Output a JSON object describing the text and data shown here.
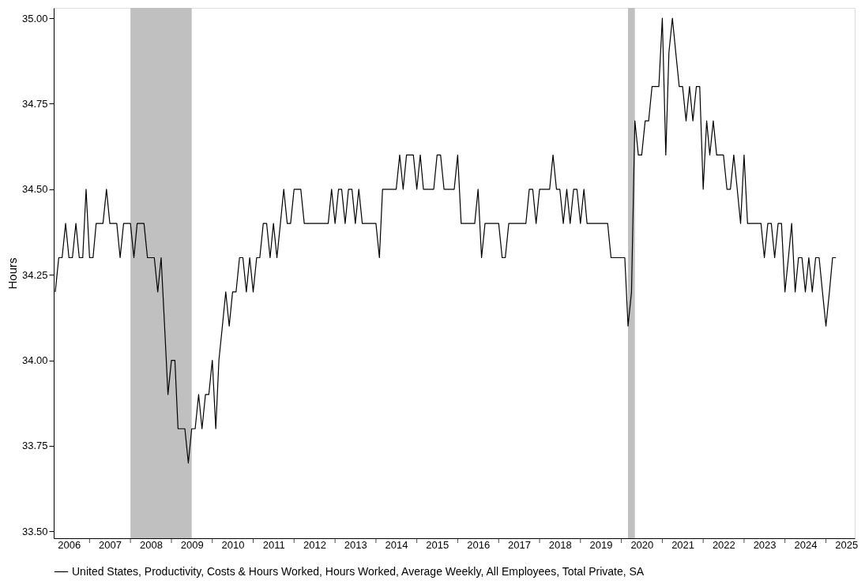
{
  "chart_data": {
    "type": "line",
    "ylabel": "Hours",
    "legend": "bottom",
    "grid": false,
    "line_style": "solid",
    "x": [
      "2006-03",
      "2006-04",
      "2006-05",
      "2006-06",
      "2006-07",
      "2006-08",
      "2006-09",
      "2006-10",
      "2006-11",
      "2006-12",
      "2007-01",
      "2007-02",
      "2007-03",
      "2007-05",
      "2007-06",
      "2007-07",
      "2007-09",
      "2007-10",
      "2007-11",
      "2008-01",
      "2008-02",
      "2008-03",
      "2008-05",
      "2008-06",
      "2008-08",
      "2008-09",
      "2008-10",
      "2008-11",
      "2008-12",
      "2009-01",
      "2009-02",
      "2009-03",
      "2009-05",
      "2009-06",
      "2009-07",
      "2009-08",
      "2009-09",
      "2009-10",
      "2009-11",
      "2009-12",
      "2010-01",
      "2010-02",
      "2010-03",
      "2010-04",
      "2010-05",
      "2010-06",
      "2010-07",
      "2010-08",
      "2010-09",
      "2010-10",
      "2010-11",
      "2010-12",
      "2011-01",
      "2011-02",
      "2011-03",
      "2011-04",
      "2011-05",
      "2011-06",
      "2011-07",
      "2011-08",
      "2011-09",
      "2011-10",
      "2011-11",
      "2011-12",
      "2012-01",
      "2012-03",
      "2012-04",
      "2012-11",
      "2012-12",
      "2013-01",
      "2013-02",
      "2013-03",
      "2013-04",
      "2013-05",
      "2013-06",
      "2013-07",
      "2013-08",
      "2013-09",
      "2014-01",
      "2014-02",
      "2014-03",
      "2014-07",
      "2014-08",
      "2014-09",
      "2014-10",
      "2014-12",
      "2015-01",
      "2015-02",
      "2015-03",
      "2015-06",
      "2015-07",
      "2015-08",
      "2015-09",
      "2015-12",
      "2016-01",
      "2016-02",
      "2016-06",
      "2016-07",
      "2016-08",
      "2016-09",
      "2017-01",
      "2017-02",
      "2017-03",
      "2017-04",
      "2017-09",
      "2017-10",
      "2017-11",
      "2017-12",
      "2018-01",
      "2018-04",
      "2018-05",
      "2018-06",
      "2018-07",
      "2018-08",
      "2018-09",
      "2018-10",
      "2018-11",
      "2018-12",
      "2019-01",
      "2019-02",
      "2019-03",
      "2019-09",
      "2019-10",
      "2020-02",
      "2020-03",
      "2020-04",
      "2020-05",
      "2020-06",
      "2020-07",
      "2020-08",
      "2020-09",
      "2020-10",
      "2020-12",
      "2021-01",
      "2021-02",
      "2021-03",
      "2021-04",
      "2021-05",
      "2021-06",
      "2021-07",
      "2021-08",
      "2021-09",
      "2021-10",
      "2021-11",
      "2021-12",
      "2022-01",
      "2022-02",
      "2022-03",
      "2022-04",
      "2022-05",
      "2022-07",
      "2022-08",
      "2022-09",
      "2022-10",
      "2022-11",
      "2022-12",
      "2023-01",
      "2023-02",
      "2023-06",
      "2023-07",
      "2023-08",
      "2023-09",
      "2023-10",
      "2023-11",
      "2023-12",
      "2024-01",
      "2024-02",
      "2024-03",
      "2024-04",
      "2024-05",
      "2024-06",
      "2024-07",
      "2024-08",
      "2024-09",
      "2024-10",
      "2024-11",
      "2024-12",
      "2025-01",
      "2025-02",
      "2025-03",
      "2025-04"
    ],
    "series": [
      {
        "name": "United States, Productivity, Costs & Hours Worked, Hours Worked, Average Weekly, All Employees, Total Private, SA",
        "color": "#000000",
        "values": [
          34.2,
          34.3,
          34.3,
          34.4,
          34.3,
          34.3,
          34.4,
          34.3,
          34.3,
          34.5,
          34.3,
          34.3,
          34.4,
          34.4,
          34.5,
          34.4,
          34.4,
          34.3,
          34.4,
          34.4,
          34.3,
          34.4,
          34.4,
          34.3,
          34.3,
          34.2,
          34.3,
          34.1,
          33.9,
          34.0,
          34.0,
          33.8,
          33.8,
          33.7,
          33.8,
          33.8,
          33.9,
          33.8,
          33.9,
          33.9,
          34.0,
          33.8,
          34.0,
          34.1,
          34.2,
          34.1,
          34.2,
          34.2,
          34.3,
          34.3,
          34.2,
          34.3,
          34.2,
          34.3,
          34.3,
          34.4,
          34.4,
          34.3,
          34.4,
          34.3,
          34.4,
          34.5,
          34.4,
          34.4,
          34.5,
          34.5,
          34.4,
          34.4,
          34.5,
          34.4,
          34.5,
          34.5,
          34.4,
          34.5,
          34.5,
          34.4,
          34.5,
          34.4,
          34.4,
          34.3,
          34.5,
          34.5,
          34.6,
          34.5,
          34.6,
          34.6,
          34.5,
          34.6,
          34.5,
          34.5,
          34.6,
          34.6,
          34.5,
          34.5,
          34.6,
          34.4,
          34.4,
          34.5,
          34.3,
          34.4,
          34.4,
          34.3,
          34.3,
          34.4,
          34.4,
          34.5,
          34.5,
          34.4,
          34.5,
          34.5,
          34.6,
          34.5,
          34.5,
          34.4,
          34.5,
          34.4,
          34.5,
          34.5,
          34.4,
          34.5,
          34.4,
          34.4,
          34.3,
          34.3,
          34.1,
          34.2,
          34.7,
          34.6,
          34.6,
          34.7,
          34.7,
          34.8,
          34.8,
          35.0,
          34.6,
          34.9,
          35.0,
          34.9,
          34.8,
          34.8,
          34.7,
          34.8,
          34.7,
          34.8,
          34.8,
          34.5,
          34.7,
          34.6,
          34.7,
          34.6,
          34.6,
          34.5,
          34.5,
          34.6,
          34.5,
          34.4,
          34.6,
          34.4,
          34.4,
          34.3,
          34.4,
          34.4,
          34.3,
          34.4,
          34.4,
          34.2,
          34.3,
          34.4,
          34.2,
          34.3,
          34.3,
          34.2,
          34.3,
          34.2,
          34.3,
          34.3,
          34.2,
          34.1,
          34.2,
          34.3,
          34.3
        ]
      }
    ],
    "xlim": [
      "2006-02-15",
      "2025-09-15"
    ],
    "xticks": [
      {
        "value": "2006-07-01",
        "label": "2006"
      },
      {
        "value": "2007-01-01",
        "label": null
      },
      {
        "value": "2007-07-01",
        "label": "2007"
      },
      {
        "value": "2008-01-01",
        "label": null
      },
      {
        "value": "2008-07-01",
        "label": "2008"
      },
      {
        "value": "2009-01-01",
        "label": null
      },
      {
        "value": "2009-07-01",
        "label": "2009"
      },
      {
        "value": "2010-01-01",
        "label": null
      },
      {
        "value": "2010-07-01",
        "label": "2010"
      },
      {
        "value": "2011-01-01",
        "label": null
      },
      {
        "value": "2011-07-01",
        "label": "2011"
      },
      {
        "value": "2012-01-01",
        "label": null
      },
      {
        "value": "2012-07-01",
        "label": "2012"
      },
      {
        "value": "2013-01-01",
        "label": null
      },
      {
        "value": "2013-07-01",
        "label": "2013"
      },
      {
        "value": "2014-01-01",
        "label": null
      },
      {
        "value": "2014-07-01",
        "label": "2014"
      },
      {
        "value": "2015-01-01",
        "label": null
      },
      {
        "value": "2015-07-01",
        "label": "2015"
      },
      {
        "value": "2016-01-01",
        "label": null
      },
      {
        "value": "2016-07-01",
        "label": "2016"
      },
      {
        "value": "2017-01-01",
        "label": null
      },
      {
        "value": "2017-07-01",
        "label": "2017"
      },
      {
        "value": "2018-01-01",
        "label": null
      },
      {
        "value": "2018-07-01",
        "label": "2018"
      },
      {
        "value": "2019-01-01",
        "label": null
      },
      {
        "value": "2019-07-01",
        "label": "2019"
      },
      {
        "value": "2020-01-01",
        "label": null
      },
      {
        "value": "2020-07-01",
        "label": "2020"
      },
      {
        "value": "2021-01-01",
        "label": null
      },
      {
        "value": "2021-07-01",
        "label": "2021"
      },
      {
        "value": "2022-01-01",
        "label": null
      },
      {
        "value": "2022-07-01",
        "label": "2022"
      },
      {
        "value": "2023-01-01",
        "label": null
      },
      {
        "value": "2023-07-01",
        "label": "2023"
      },
      {
        "value": "2024-01-01",
        "label": null
      },
      {
        "value": "2024-07-01",
        "label": "2024"
      },
      {
        "value": "2025-01-01",
        "label": null
      },
      {
        "value": "2025-07-01",
        "label": "2025"
      }
    ],
    "ylim": [
      33.48,
      35.03
    ],
    "yticks": [
      {
        "value": 33.5,
        "label": "33.50"
      },
      {
        "value": 33.75,
        "label": "33.75"
      },
      {
        "value": 34.0,
        "label": "34.00"
      },
      {
        "value": 34.25,
        "label": "34.25"
      },
      {
        "value": 34.5,
        "label": "34.50"
      },
      {
        "value": 34.75,
        "label": "34.75"
      },
      {
        "value": 35.0,
        "label": "35.00"
      }
    ],
    "bands": [
      {
        "axis": "x",
        "from": "2008-01",
        "to": "2009-07",
        "color": "#c0c0c0"
      },
      {
        "axis": "x",
        "from": "2020-03",
        "to": "2020-05",
        "color": "#c0c0c0"
      }
    ]
  }
}
